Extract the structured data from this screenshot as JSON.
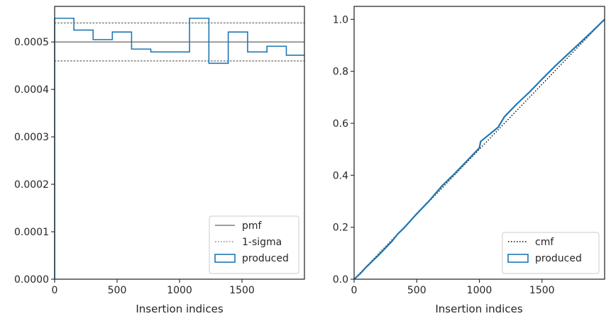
{
  "chart_data": [
    {
      "type": "step",
      "xlabel": "Insertion indices",
      "ylabel": "",
      "xlim": [
        0,
        2000
      ],
      "ylim": [
        0,
        0.000575
      ],
      "xticks": [
        0,
        500,
        1000,
        1500
      ],
      "xtick_labels": [
        "0",
        "500",
        "1000",
        "1500"
      ],
      "yticks": [
        0,
        0.0001,
        0.0002,
        0.0003,
        0.0004,
        0.0005
      ],
      "ytick_labels": [
        "0.0000",
        "0.0001",
        "0.0002",
        "0.0003",
        "0.0004",
        "0.0005"
      ],
      "bin_edges": [
        0,
        154,
        308,
        462,
        616,
        770,
        1080,
        1235,
        1390,
        1545,
        1700,
        1855,
        2000
      ],
      "series": [
        {
          "name": "produced",
          "color": "#1f77b4",
          "style": "step-histogram",
          "values": [
            0.00055,
            0.000525,
            0.000505,
            0.000521,
            0.000485,
            0.000479,
            0.00055,
            0.000455,
            0.000521,
            0.000479,
            0.000491,
            0.000472
          ]
        },
        {
          "name": "pmf",
          "color": "#7f7f7f",
          "style": "solid-hline",
          "value": 0.0005
        },
        {
          "name": "1-sigma",
          "color": "#7f7f7f",
          "style": "dotted-hline",
          "values": [
            0.00054,
            0.00046
          ]
        }
      ],
      "legend": {
        "position": "lower-right",
        "entries": [
          "pmf",
          "1-sigma",
          "produced"
        ]
      }
    },
    {
      "type": "line",
      "xlabel": "Insertion indices",
      "ylabel": "",
      "xlim": [
        0,
        2000
      ],
      "ylim": [
        0,
        1.05
      ],
      "xticks": [
        0,
        500,
        1000,
        1500
      ],
      "xtick_labels": [
        "0",
        "500",
        "1000",
        "1500"
      ],
      "yticks": [
        0,
        0.2,
        0.4,
        0.6,
        0.8,
        1.0
      ],
      "ytick_labels": [
        "0.0",
        "0.2",
        "0.4",
        "0.6",
        "0.8",
        "1.0"
      ],
      "series": [
        {
          "name": "cmf",
          "color": "#000000",
          "style": "dotted",
          "x": [
            0,
            2000
          ],
          "y": [
            0,
            1.0
          ]
        },
        {
          "name": "produced",
          "color": "#1f77b4",
          "style": "step",
          "x": [
            0,
            50,
            100,
            200,
            300,
            350,
            400,
            500,
            600,
            700,
            800,
            900,
            1000,
            1010,
            1100,
            1150,
            1200,
            1300,
            1400,
            1500,
            1600,
            1700,
            1800,
            1900,
            2000
          ],
          "y": [
            0,
            0.022,
            0.048,
            0.095,
            0.145,
            0.175,
            0.198,
            0.252,
            0.302,
            0.358,
            0.405,
            0.455,
            0.505,
            0.53,
            0.565,
            0.585,
            0.625,
            0.675,
            0.72,
            0.77,
            0.818,
            0.863,
            0.908,
            0.953,
            1.0
          ]
        }
      ],
      "legend": {
        "position": "lower-right",
        "entries": [
          "cmf",
          "produced"
        ]
      }
    }
  ]
}
